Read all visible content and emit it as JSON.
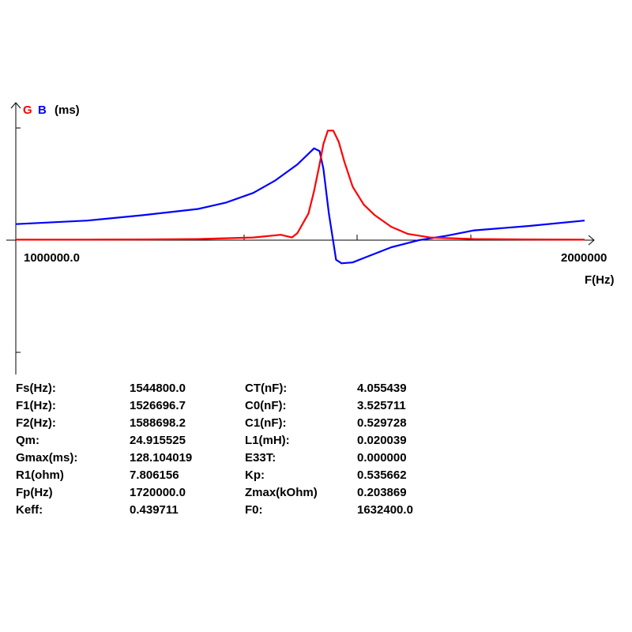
{
  "chart_data": {
    "type": "line",
    "legend": {
      "g_label": "G",
      "g_color": "#ff0000",
      "b_label": "B",
      "b_color": "#0000ff",
      "unit_label": "(ms)"
    },
    "x_start_label": "1000000.0",
    "x_end_label": "2000000",
    "xlabel": "F(Hz)",
    "xlim": [
      970000,
      2000000
    ],
    "ylim": [
      -55,
      125
    ],
    "series": [
      {
        "name": "G",
        "color": "#ff0000",
        "x": [
          970000,
          1100000,
          1200000,
          1300000,
          1400000,
          1450000,
          1470000,
          1480000,
          1500000,
          1510000,
          1520000,
          1527000,
          1535000,
          1545000,
          1555000,
          1565000,
          1580000,
          1600000,
          1620000,
          1650000,
          1680000,
          1720000,
          1800000,
          1900000,
          2000000
        ],
        "y": [
          0.5,
          0.6,
          0.8,
          1.2,
          3,
          6,
          3,
          8,
          30,
          55,
          85,
          108,
          123,
          123,
          110,
          88,
          60,
          40,
          28,
          15,
          7,
          3,
          1.2,
          0.8,
          0.5
        ]
      },
      {
        "name": "B",
        "color": "#0000ff",
        "x": [
          970000,
          1100000,
          1200000,
          1300000,
          1350000,
          1400000,
          1440000,
          1480000,
          1510000,
          1520000,
          1527000,
          1537000,
          1550000,
          1560000,
          1580000,
          1600000,
          1650000,
          1700000,
          1750000,
          1800000,
          1900000,
          2000000
        ],
        "y": [
          18,
          22,
          28,
          35,
          42,
          53,
          67,
          85,
          103,
          100,
          80,
          30,
          -22,
          -26,
          -25,
          -20,
          -8,
          0,
          5,
          11,
          16,
          22
        ]
      }
    ]
  },
  "params": {
    "rows": [
      {
        "l1": "Fs(Hz):",
        "v1": "1544800.0",
        "l2": "CT(nF):",
        "v2": "4.055439"
      },
      {
        "l1": "F1(Hz):",
        "v1": "1526696.7",
        "l2": "C0(nF):",
        "v2": "3.525711"
      },
      {
        "l1": "F2(Hz):",
        "v1": "1588698.2",
        "l2": "C1(nF):",
        "v2": "0.529728"
      },
      {
        "l1": "Qm:",
        "v1": "24.915525",
        "l2": "L1(mH):",
        "v2": "0.020039"
      },
      {
        "l1": "Gmax(ms):",
        "v1": "128.104019",
        "l2": "E33T:",
        "v2": "0.000000"
      },
      {
        "l1": "R1(ohm)",
        "v1": "7.806156",
        "l2": "Kp:",
        "v2": "0.535662"
      },
      {
        "l1": "Fp(Hz)",
        "v1": "1720000.0",
        "l2": "Zmax(kOhm)",
        "v2": "0.203869"
      },
      {
        "l1": "Keff:",
        "v1": "0.439711",
        "l2": "F0:",
        "v2": "1632400.0"
      }
    ]
  }
}
